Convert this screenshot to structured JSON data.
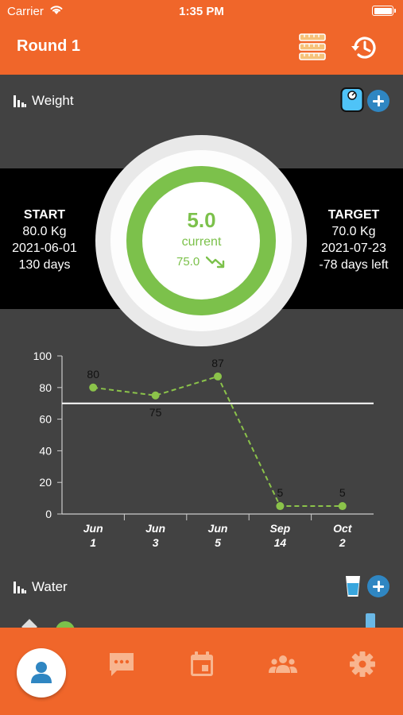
{
  "status_bar": {
    "carrier": "Carrier",
    "time": "1:35 PM"
  },
  "header": {
    "title": "Round 1",
    "icons": [
      "measuring-tape-icon",
      "history-icon"
    ]
  },
  "weight": {
    "label": "Weight",
    "start": {
      "heading": "START",
      "value": "80.0 Kg",
      "date": "2021-06-01",
      "days": "130 days"
    },
    "target": {
      "heading": "TARGET",
      "value": "70.0 Kg",
      "date": "2021-07-23",
      "days": "-78 days left"
    },
    "gauge": {
      "value": "5.0",
      "label": "current",
      "current": "75.0",
      "progress": 1.0
    }
  },
  "water": {
    "label": "Water"
  },
  "chart_data": {
    "type": "line",
    "categories": [
      "Jun\n1",
      "Jun\n3",
      "Jun\n5",
      "Sep\n14",
      "Oct\n2"
    ],
    "x_labels": [
      [
        "Jun",
        "1"
      ],
      [
        "Jun",
        "3"
      ],
      [
        "Jun",
        "5"
      ],
      [
        "Sep",
        "14"
      ],
      [
        "Oct",
        "2"
      ]
    ],
    "values": [
      80,
      75,
      87,
      5,
      5
    ],
    "data_labels": [
      "80",
      "75",
      "87",
      "5",
      "5"
    ],
    "target_line": 70,
    "ylim": [
      0,
      100
    ],
    "yticks": [
      0,
      20,
      40,
      60,
      80,
      100
    ],
    "grid": "vertical",
    "colors": {
      "line": "#8bc34a",
      "target": "#ffffff",
      "axis": "#cccccc"
    }
  },
  "tabs": [
    {
      "name": "profile",
      "icon": "person-icon",
      "active": true
    },
    {
      "name": "messages",
      "icon": "chat-icon",
      "active": false
    },
    {
      "name": "calendar",
      "icon": "calendar-icon",
      "active": false
    },
    {
      "name": "groups",
      "icon": "group-icon",
      "active": false
    },
    {
      "name": "settings",
      "icon": "gear-icon",
      "active": false
    }
  ],
  "colors": {
    "brand": "#f0662a",
    "accent": "#7cc14b",
    "button": "#2f86c2",
    "background": "#424242"
  }
}
